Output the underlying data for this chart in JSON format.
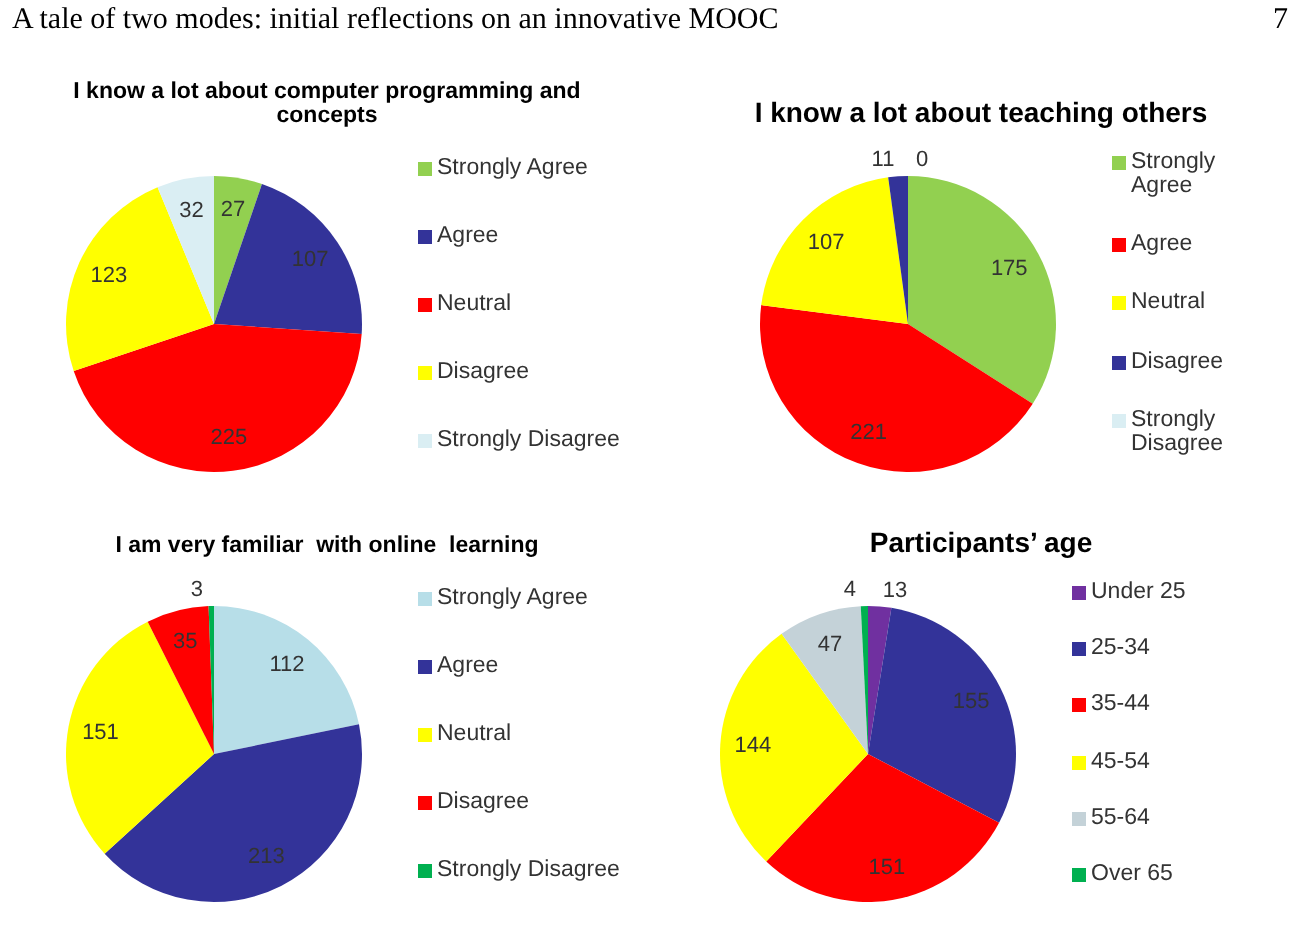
{
  "chart_data": [
    {
      "type": "pie",
      "title": "I know a lot about computer programming and concepts",
      "annotations": [
        "A tale of two modes: initial reflections on an innovative MOOC",
        "7"
      ],
      "categories": [
        "Strongly Agree",
        "Agree",
        "Neutral",
        "Disagree",
        "Strongly Disagree"
      ],
      "values": [
        27,
        107,
        225,
        123,
        32
      ],
      "colors": [
        "#92d050",
        "#333399",
        "#ff0000",
        "#ffff00",
        "#daeef3"
      ],
      "data_labels": true,
      "legend": "right"
    },
    {
      "type": "pie",
      "title": "I know a lot about teaching others",
      "categories": [
        "Strongly Agree",
        "Agree",
        "Neutral",
        "Disagree",
        "Strongly Disagree"
      ],
      "values": [
        175,
        221,
        107,
        11,
        0
      ],
      "value_labels": [
        "175",
        "221",
        "107",
        "11",
        "0"
      ],
      "colors": [
        "#92d050",
        "#ff0000",
        "#ffff00",
        "#333399",
        "#daeef3"
      ],
      "data_labels": true,
      "legend": "right"
    },
    {
      "type": "pie",
      "title": "I am very familiar  with online  learning",
      "categories": [
        "Strongly Agree",
        "Agree",
        "Neutral",
        "Disagree",
        "Strongly Disagree"
      ],
      "values": [
        112,
        213,
        151,
        35,
        3
      ],
      "colors": [
        "#b7dee8",
        "#333399",
        "#ffff00",
        "#ff0000",
        "#00b050"
      ],
      "data_labels": true,
      "legend": "right"
    },
    {
      "type": "pie",
      "title": "Participants’ age",
      "categories": [
        "Under 25",
        "25-34",
        "35-44",
        "45-54",
        "55-64",
        "Over 65"
      ],
      "values": [
        13,
        155,
        151,
        144,
        47,
        4
      ],
      "colors": [
        "#7030a0",
        "#333399",
        "#ff0000",
        "#ffff00",
        "#c4d2d8",
        "#00b050"
      ],
      "data_labels": true,
      "legend": "right"
    }
  ]
}
